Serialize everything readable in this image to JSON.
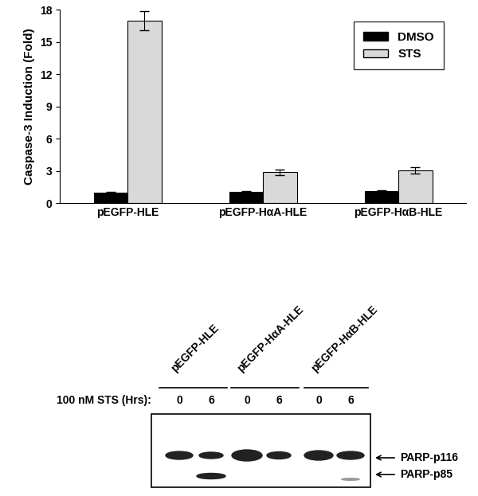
{
  "chart_data": {
    "type": "bar",
    "y_label": "Caspase-3 Induction (Fold)",
    "categories": [
      "pEGFP-HLE",
      "pEGFP-HαA-HLE",
      "pEGFP-HαB-HLE"
    ],
    "series": [
      {
        "name": "DMSO",
        "color": "#000000",
        "values": [
          1.0,
          1.1,
          1.15
        ],
        "errors": [
          0.1,
          0.08,
          0.1
        ]
      },
      {
        "name": "STS",
        "color": "#d9d9d9",
        "values": [
          17.0,
          2.9,
          3.1
        ],
        "errors": [
          0.9,
          0.25,
          0.3
        ]
      }
    ],
    "ylim": [
      0,
      18
    ],
    "yticks": [
      0,
      3,
      6,
      9,
      12,
      15,
      18
    ],
    "legend": "upper right"
  },
  "blot": {
    "time_label": "100 nM STS (Hrs):",
    "lanes": [
      {
        "label": "pEGFP-HLE",
        "times": [
          0,
          6
        ]
      },
      {
        "label": "pEGFP-HαA-HLE",
        "times": [
          0,
          6
        ]
      },
      {
        "label": "pEGFP-HαB-HLE",
        "times": [
          0,
          6
        ]
      }
    ],
    "bands": [
      "PARP-p116",
      "PARP-p85"
    ]
  }
}
